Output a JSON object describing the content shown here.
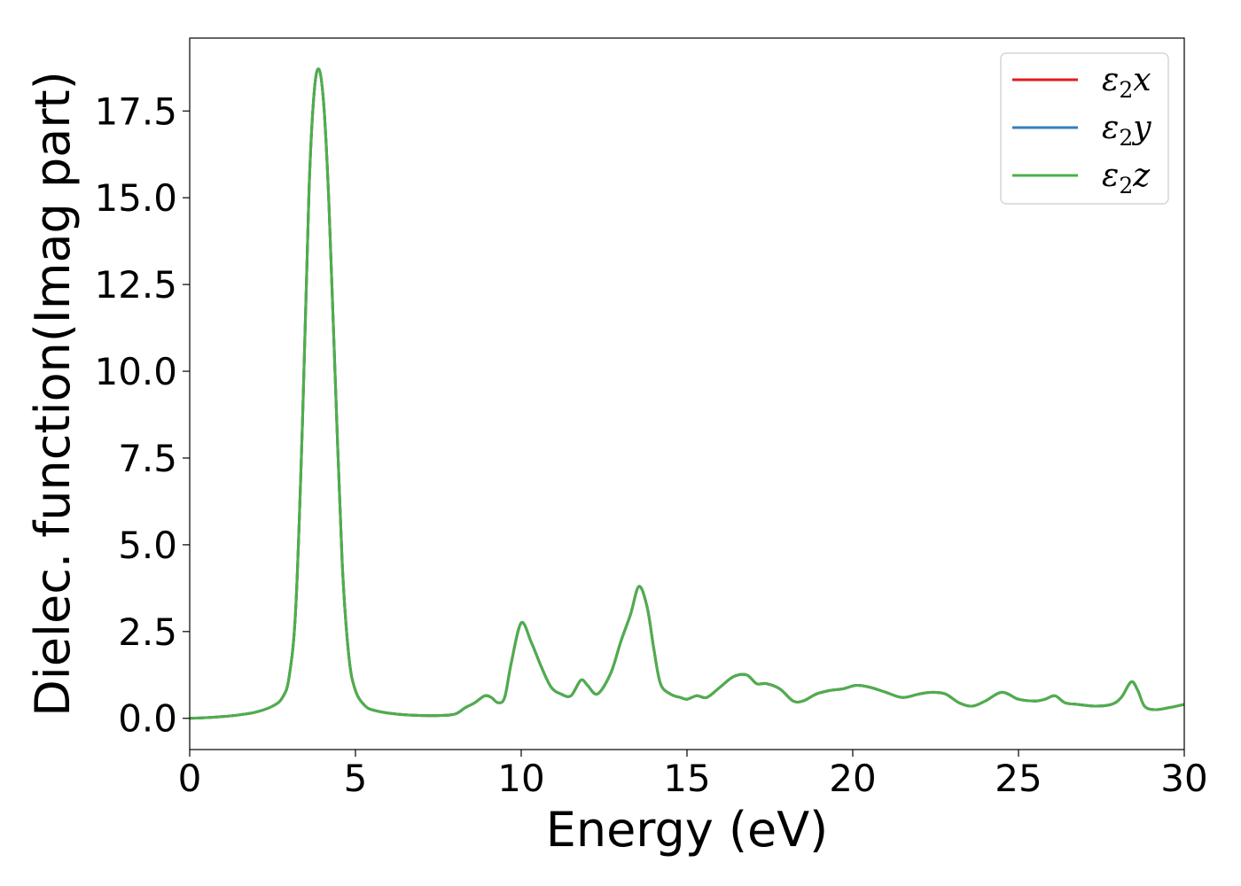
{
  "chart_data": {
    "type": "line",
    "title": "",
    "xlabel": "Energy (eV)",
    "ylabel": "Dielec. function(Imag part)",
    "xlim": [
      0,
      30
    ],
    "ylim": [
      -0.9,
      19.6
    ],
    "xticks": [
      0,
      5,
      10,
      15,
      20,
      25,
      30
    ],
    "xtick_labels": [
      "0",
      "5",
      "10",
      "15",
      "20",
      "25",
      "30"
    ],
    "yticks": [
      0.0,
      2.5,
      5.0,
      7.5,
      10.0,
      12.5,
      15.0,
      17.5
    ],
    "ytick_labels": [
      "0.0",
      "2.5",
      "5.0",
      "7.5",
      "10.0",
      "12.5",
      "15.0",
      "17.5"
    ],
    "grid": false,
    "legend": {
      "position": "top-right"
    },
    "x": [
      0.0,
      0.5,
      1.0,
      1.5,
      2.0,
      2.5,
      2.8,
      3.0,
      3.2,
      3.4,
      3.6,
      3.75,
      3.9,
      4.05,
      4.2,
      4.4,
      4.6,
      4.8,
      5.0,
      5.3,
      5.6,
      6.0,
      6.5,
      7.0,
      7.5,
      8.0,
      8.3,
      8.6,
      8.9,
      9.1,
      9.3,
      9.5,
      9.7,
      10.0,
      10.3,
      10.6,
      10.9,
      11.2,
      11.5,
      11.8,
      12.0,
      12.3,
      12.7,
      13.0,
      13.3,
      13.55,
      13.8,
      14.0,
      14.2,
      14.5,
      14.8,
      15.0,
      15.3,
      15.6,
      16.0,
      16.4,
      16.8,
      17.1,
      17.4,
      17.8,
      18.2,
      18.5,
      18.9,
      19.3,
      19.7,
      20.1,
      20.5,
      21.0,
      21.5,
      22.0,
      22.4,
      22.8,
      23.2,
      23.6,
      24.0,
      24.5,
      25.0,
      25.5,
      25.8,
      26.1,
      26.4,
      26.8,
      27.3,
      27.8,
      28.1,
      28.4,
      28.6,
      28.8,
      29.1,
      29.5,
      30.0
    ],
    "series": [
      {
        "name": "ε₂x",
        "label_base": "ε",
        "label_sub": "2",
        "label_suffix": "x",
        "color": "#e41a1c",
        "y": [
          0.0,
          0.02,
          0.05,
          0.1,
          0.18,
          0.35,
          0.6,
          1.2,
          3.2,
          8.5,
          15.2,
          18.0,
          18.7,
          17.6,
          14.8,
          9.5,
          4.5,
          1.8,
          0.8,
          0.35,
          0.22,
          0.15,
          0.1,
          0.08,
          0.08,
          0.12,
          0.3,
          0.45,
          0.65,
          0.6,
          0.45,
          0.6,
          1.6,
          2.75,
          2.2,
          1.5,
          0.9,
          0.7,
          0.65,
          1.1,
          0.95,
          0.7,
          1.3,
          2.2,
          3.0,
          3.8,
          3.2,
          2.0,
          1.0,
          0.7,
          0.6,
          0.55,
          0.65,
          0.6,
          0.9,
          1.2,
          1.25,
          1.0,
          1.0,
          0.85,
          0.5,
          0.5,
          0.7,
          0.8,
          0.85,
          0.95,
          0.9,
          0.75,
          0.6,
          0.7,
          0.75,
          0.7,
          0.45,
          0.35,
          0.5,
          0.75,
          0.55,
          0.5,
          0.55,
          0.65,
          0.45,
          0.4,
          0.35,
          0.4,
          0.6,
          1.05,
          0.8,
          0.35,
          0.25,
          0.3,
          0.4
        ]
      },
      {
        "name": "ε₂y",
        "label_base": "ε",
        "label_sub": "2",
        "label_suffix": "y",
        "color": "#377eb8",
        "y": [
          0.0,
          0.02,
          0.05,
          0.1,
          0.18,
          0.35,
          0.6,
          1.2,
          3.2,
          8.5,
          15.2,
          18.0,
          18.7,
          17.6,
          14.8,
          9.5,
          4.5,
          1.8,
          0.8,
          0.35,
          0.22,
          0.15,
          0.1,
          0.08,
          0.08,
          0.12,
          0.3,
          0.45,
          0.65,
          0.6,
          0.45,
          0.6,
          1.6,
          2.75,
          2.2,
          1.5,
          0.9,
          0.7,
          0.65,
          1.1,
          0.95,
          0.7,
          1.3,
          2.2,
          3.0,
          3.8,
          3.2,
          2.0,
          1.0,
          0.7,
          0.6,
          0.55,
          0.65,
          0.6,
          0.9,
          1.2,
          1.25,
          1.0,
          1.0,
          0.85,
          0.5,
          0.5,
          0.7,
          0.8,
          0.85,
          0.95,
          0.9,
          0.75,
          0.6,
          0.7,
          0.75,
          0.7,
          0.45,
          0.35,
          0.5,
          0.75,
          0.55,
          0.5,
          0.55,
          0.65,
          0.45,
          0.4,
          0.35,
          0.4,
          0.6,
          1.05,
          0.8,
          0.35,
          0.25,
          0.3,
          0.4
        ]
      },
      {
        "name": "ε₂z",
        "label_base": "ε",
        "label_sub": "2",
        "label_suffix": "z",
        "color": "#4daf4a",
        "y": [
          0.0,
          0.02,
          0.05,
          0.1,
          0.18,
          0.35,
          0.6,
          1.2,
          3.2,
          8.5,
          15.2,
          18.0,
          18.7,
          17.6,
          14.8,
          9.5,
          4.5,
          1.8,
          0.8,
          0.35,
          0.22,
          0.15,
          0.1,
          0.08,
          0.08,
          0.12,
          0.3,
          0.45,
          0.65,
          0.6,
          0.45,
          0.6,
          1.6,
          2.75,
          2.2,
          1.5,
          0.9,
          0.7,
          0.65,
          1.1,
          0.95,
          0.7,
          1.3,
          2.2,
          3.0,
          3.8,
          3.2,
          2.0,
          1.0,
          0.7,
          0.6,
          0.55,
          0.65,
          0.6,
          0.9,
          1.2,
          1.25,
          1.0,
          1.0,
          0.85,
          0.5,
          0.5,
          0.7,
          0.8,
          0.85,
          0.95,
          0.9,
          0.75,
          0.6,
          0.7,
          0.75,
          0.7,
          0.45,
          0.35,
          0.5,
          0.75,
          0.55,
          0.5,
          0.55,
          0.65,
          0.45,
          0.4,
          0.35,
          0.4,
          0.6,
          1.05,
          0.8,
          0.35,
          0.25,
          0.3,
          0.4
        ]
      }
    ]
  }
}
